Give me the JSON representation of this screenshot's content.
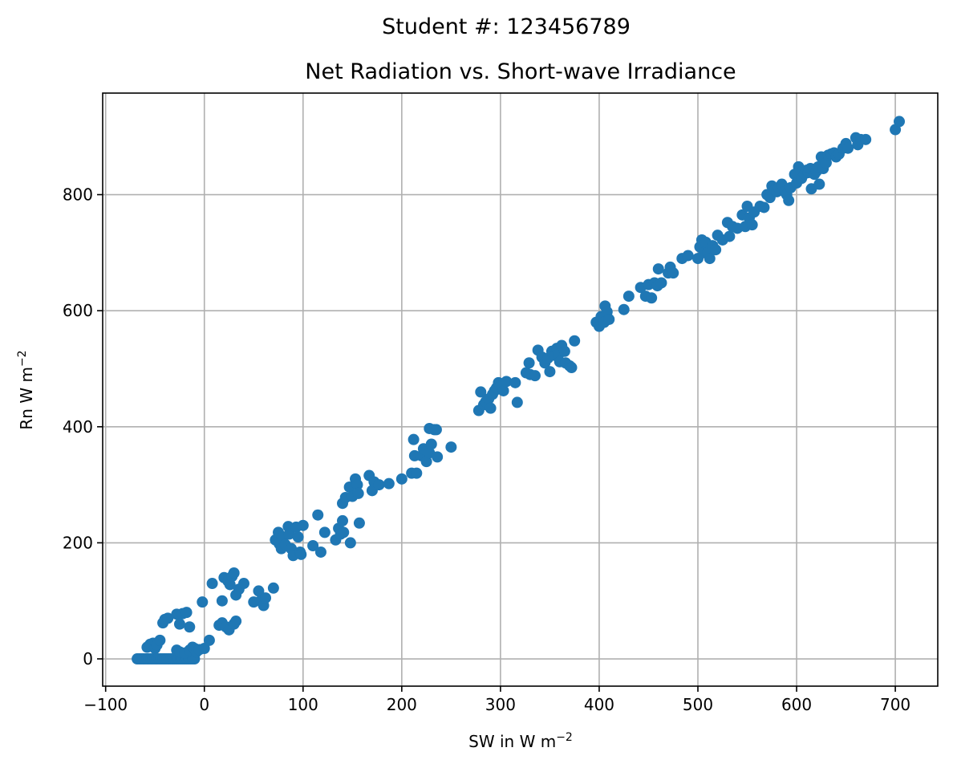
{
  "chart_data": {
    "type": "scatter",
    "suptitle": "Student #: 123456789",
    "title": "Net Radiation vs. Short-wave Irradiance",
    "xlabel": "SW in W m",
    "xlabel_sup": "−2",
    "ylabel": "Rn W m",
    "ylabel_sup": "−2",
    "xlim": [
      -103,
      743
    ],
    "ylim": [
      -47,
      975
    ],
    "xticks": [
      -100,
      0,
      100,
      200,
      300,
      400,
      500,
      600,
      700
    ],
    "xtick_labels": [
      "−100",
      "0",
      "100",
      "200",
      "300",
      "400",
      "500",
      "600",
      "700"
    ],
    "yticks": [
      0,
      200,
      400,
      600,
      800
    ],
    "ytick_labels": [
      "0",
      "200",
      "400",
      "600",
      "800"
    ],
    "grid": true,
    "marker_color": "#1f77b4",
    "points": [
      [
        -68,
        0
      ],
      [
        -66,
        0
      ],
      [
        -64,
        0
      ],
      [
        -62,
        0
      ],
      [
        -60,
        0
      ],
      [
        -58,
        0
      ],
      [
        -56,
        0
      ],
      [
        -54,
        0
      ],
      [
        -52,
        0
      ],
      [
        -50,
        0
      ],
      [
        -48,
        0
      ],
      [
        -46,
        0
      ],
      [
        -44,
        0
      ],
      [
        -42,
        0
      ],
      [
        -40,
        0
      ],
      [
        -38,
        0
      ],
      [
        -36,
        0
      ],
      [
        -34,
        0
      ],
      [
        -32,
        0
      ],
      [
        -30,
        0
      ],
      [
        -28,
        0
      ],
      [
        -26,
        0
      ],
      [
        -24,
        0
      ],
      [
        -22,
        0
      ],
      [
        -20,
        0
      ],
      [
        -18,
        0
      ],
      [
        -16,
        0
      ],
      [
        -14,
        0
      ],
      [
        -12,
        0
      ],
      [
        -10,
        0
      ],
      [
        -58,
        20
      ],
      [
        -55,
        25
      ],
      [
        -52,
        27
      ],
      [
        -50,
        18
      ],
      [
        -48,
        24
      ],
      [
        -45,
        32
      ],
      [
        -42,
        62
      ],
      [
        -40,
        68
      ],
      [
        -37,
        70
      ],
      [
        -28,
        77
      ],
      [
        -25,
        60
      ],
      [
        -22,
        78
      ],
      [
        -18,
        80
      ],
      [
        -15,
        55
      ],
      [
        -28,
        15
      ],
      [
        -25,
        12
      ],
      [
        -20,
        10
      ],
      [
        -15,
        15
      ],
      [
        -12,
        20
      ],
      [
        -10,
        18
      ],
      [
        -8,
        12
      ],
      [
        -5,
        16
      ],
      [
        -2,
        98
      ],
      [
        0,
        18
      ],
      [
        5,
        32
      ],
      [
        8,
        130
      ],
      [
        15,
        58
      ],
      [
        18,
        62
      ],
      [
        18,
        100
      ],
      [
        20,
        140
      ],
      [
        22,
        55
      ],
      [
        24,
        134
      ],
      [
        25,
        50
      ],
      [
        26,
        128
      ],
      [
        28,
        142
      ],
      [
        30,
        60
      ],
      [
        30,
        148
      ],
      [
        32,
        65
      ],
      [
        32,
        110
      ],
      [
        35,
        120
      ],
      [
        40,
        130
      ],
      [
        50,
        98
      ],
      [
        55,
        117
      ],
      [
        57,
        100
      ],
      [
        60,
        92
      ],
      [
        62,
        105
      ],
      [
        70,
        122
      ],
      [
        72,
        205
      ],
      [
        75,
        218
      ],
      [
        76,
        198
      ],
      [
        78,
        190
      ],
      [
        80,
        210
      ],
      [
        82,
        197
      ],
      [
        85,
        228
      ],
      [
        86,
        215
      ],
      [
        88,
        190
      ],
      [
        90,
        178
      ],
      [
        93,
        227
      ],
      [
        95,
        210
      ],
      [
        97,
        184
      ],
      [
        98,
        180
      ],
      [
        100,
        230
      ],
      [
        110,
        195
      ],
      [
        115,
        248
      ],
      [
        118,
        184
      ],
      [
        122,
        218
      ],
      [
        133,
        205
      ],
      [
        136,
        225
      ],
      [
        138,
        215
      ],
      [
        140,
        238
      ],
      [
        141,
        218
      ],
      [
        140,
        268
      ],
      [
        143,
        278
      ],
      [
        147,
        296
      ],
      [
        148,
        200
      ],
      [
        150,
        280
      ],
      [
        153,
        310
      ],
      [
        155,
        300
      ],
      [
        156,
        285
      ],
      [
        157,
        234
      ],
      [
        167,
        316
      ],
      [
        170,
        290
      ],
      [
        172,
        305
      ],
      [
        177,
        300
      ],
      [
        187,
        302
      ],
      [
        200,
        310
      ],
      [
        210,
        320
      ],
      [
        212,
        378
      ],
      [
        213,
        350
      ],
      [
        215,
        320
      ],
      [
        220,
        350
      ],
      [
        222,
        362
      ],
      [
        225,
        340
      ],
      [
        228,
        355
      ],
      [
        228,
        397
      ],
      [
        230,
        370
      ],
      [
        233,
        395
      ],
      [
        235,
        395
      ],
      [
        236,
        348
      ],
      [
        250,
        365
      ],
      [
        278,
        428
      ],
      [
        280,
        460
      ],
      [
        283,
        438
      ],
      [
        285,
        443
      ],
      [
        288,
        448
      ],
      [
        290,
        432
      ],
      [
        292,
        456
      ],
      [
        294,
        462
      ],
      [
        296,
        467
      ],
      [
        298,
        476
      ],
      [
        300,
        470
      ],
      [
        303,
        462
      ],
      [
        306,
        478
      ],
      [
        315,
        476
      ],
      [
        317,
        442
      ],
      [
        326,
        493
      ],
      [
        329,
        510
      ],
      [
        330,
        490
      ],
      [
        335,
        488
      ],
      [
        338,
        532
      ],
      [
        342,
        520
      ],
      [
        345,
        510
      ],
      [
        348,
        518
      ],
      [
        350,
        495
      ],
      [
        352,
        530
      ],
      [
        355,
        523
      ],
      [
        357,
        535
      ],
      [
        359,
        525
      ],
      [
        360,
        512
      ],
      [
        362,
        540
      ],
      [
        365,
        530
      ],
      [
        366,
        510
      ],
      [
        370,
        505
      ],
      [
        372,
        502
      ],
      [
        375,
        548
      ],
      [
        397,
        580
      ],
      [
        400,
        573
      ],
      [
        402,
        590
      ],
      [
        405,
        580
      ],
      [
        406,
        608
      ],
      [
        408,
        598
      ],
      [
        410,
        585
      ],
      [
        425,
        602
      ],
      [
        430,
        625
      ],
      [
        442,
        640
      ],
      [
        447,
        625
      ],
      [
        450,
        645
      ],
      [
        453,
        622
      ],
      [
        456,
        648
      ],
      [
        459,
        643
      ],
      [
        460,
        672
      ],
      [
        463,
        648
      ],
      [
        470,
        665
      ],
      [
        472,
        675
      ],
      [
        475,
        665
      ],
      [
        484,
        690
      ],
      [
        490,
        695
      ],
      [
        500,
        690
      ],
      [
        502,
        710
      ],
      [
        504,
        722
      ],
      [
        506,
        700
      ],
      [
        508,
        718
      ],
      [
        510,
        700
      ],
      [
        512,
        690
      ],
      [
        515,
        712
      ],
      [
        518,
        705
      ],
      [
        520,
        730
      ],
      [
        525,
        722
      ],
      [
        530,
        752
      ],
      [
        532,
        728
      ],
      [
        535,
        745
      ],
      [
        540,
        742
      ],
      [
        545,
        765
      ],
      [
        548,
        745
      ],
      [
        550,
        780
      ],
      [
        552,
        760
      ],
      [
        555,
        748
      ],
      [
        557,
        770
      ],
      [
        563,
        780
      ],
      [
        567,
        778
      ],
      [
        570,
        800
      ],
      [
        573,
        795
      ],
      [
        575,
        815
      ],
      [
        578,
        808
      ],
      [
        580,
        805
      ],
      [
        582,
        812
      ],
      [
        585,
        818
      ],
      [
        588,
        805
      ],
      [
        590,
        800
      ],
      [
        592,
        790
      ],
      [
        594,
        812
      ],
      [
        598,
        835
      ],
      [
        600,
        820
      ],
      [
        602,
        848
      ],
      [
        605,
        828
      ],
      [
        606,
        840
      ],
      [
        608,
        836
      ],
      [
        610,
        842
      ],
      [
        612,
        838
      ],
      [
        614,
        845
      ],
      [
        615,
        810
      ],
      [
        618,
        835
      ],
      [
        620,
        840
      ],
      [
        622,
        848
      ],
      [
        623,
        818
      ],
      [
        625,
        865
      ],
      [
        627,
        845
      ],
      [
        630,
        855
      ],
      [
        632,
        868
      ],
      [
        635,
        870
      ],
      [
        638,
        872
      ],
      [
        640,
        865
      ],
      [
        643,
        870
      ],
      [
        647,
        880
      ],
      [
        650,
        888
      ],
      [
        652,
        880
      ],
      [
        660,
        898
      ],
      [
        662,
        886
      ],
      [
        665,
        895
      ],
      [
        670,
        895
      ],
      [
        700,
        912
      ],
      [
        704,
        926
      ]
    ]
  }
}
